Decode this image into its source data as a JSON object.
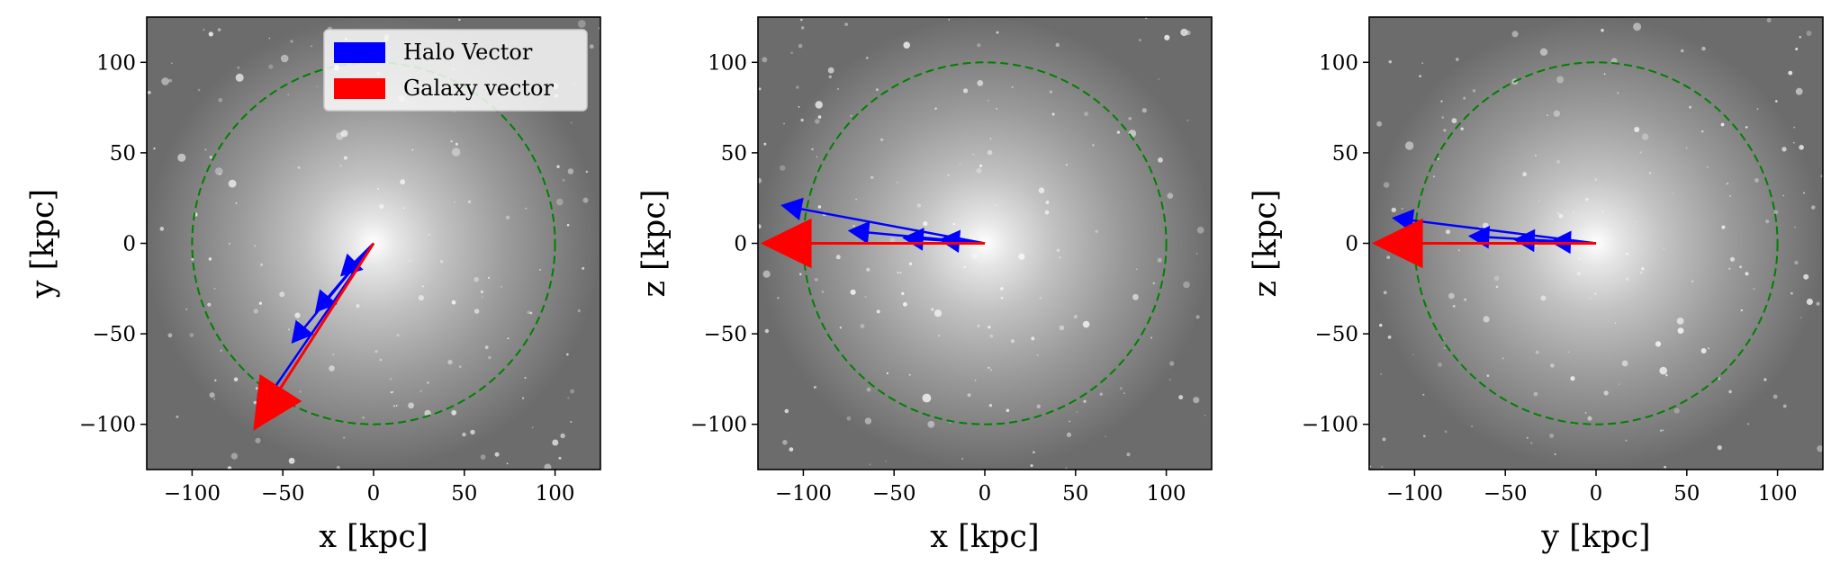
{
  "chart_data": [
    {
      "type": "quiver",
      "xlabel": "x [kpc]",
      "ylabel": "y [kpc]",
      "xlim": [
        -125,
        125
      ],
      "ylim": [
        -125,
        125
      ],
      "xticks": [
        -100,
        -50,
        0,
        50,
        100
      ],
      "yticks": [
        -100,
        -50,
        0,
        50,
        100
      ],
      "xtick_labels": [
        "−100",
        "−50",
        "0",
        "50",
        "100"
      ],
      "ytick_labels": [
        "−100",
        "−50",
        "0",
        "50",
        "100"
      ],
      "circle_radius": 100,
      "legend": {
        "placement": "top-right",
        "entries": [
          {
            "label": "Halo Vector",
            "color": "#0000ff"
          },
          {
            "label": "Galaxy vector",
            "color": "#ff0000"
          }
        ]
      },
      "series": [
        {
          "key": "halo",
          "color": "#0000ff",
          "vectors": [
            {
              "x0": 0,
              "y0": 0,
              "x1": -18,
              "y1": -18
            },
            {
              "x0": 0,
              "y0": 0,
              "x1": -32,
              "y1": -38
            },
            {
              "x0": 0,
              "y0": 0,
              "x1": -45,
              "y1": -55
            },
            {
              "x0": 0,
              "y0": 0,
              "x1": -65,
              "y1": -95
            }
          ]
        },
        {
          "key": "galaxy",
          "color": "#ff0000",
          "vectors": [
            {
              "x0": 0,
              "y0": 0,
              "x1": -66,
              "y1": -103
            }
          ]
        }
      ]
    },
    {
      "type": "quiver",
      "xlabel": "x [kpc]",
      "ylabel": "z [kpc]",
      "xlim": [
        -125,
        125
      ],
      "ylim": [
        -125,
        125
      ],
      "xticks": [
        -100,
        -50,
        0,
        50,
        100
      ],
      "yticks": [
        -100,
        -50,
        0,
        50,
        100
      ],
      "xtick_labels": [
        "−100",
        "−50",
        "0",
        "50",
        "100"
      ],
      "ytick_labels": [
        "−100",
        "−50",
        "0",
        "50",
        "100"
      ],
      "circle_radius": 100,
      "series": [
        {
          "key": "halo",
          "color": "#0000ff",
          "vectors": [
            {
              "x0": 0,
              "y0": 0,
              "x1": -25,
              "y1": 2
            },
            {
              "x0": 0,
              "y0": 0,
              "x1": -45,
              "y1": 3
            },
            {
              "x0": 0,
              "y0": 0,
              "x1": -75,
              "y1": 7
            },
            {
              "x0": 0,
              "y0": 0,
              "x1": -112,
              "y1": 21
            }
          ]
        },
        {
          "key": "galaxy",
          "color": "#ff0000",
          "vectors": [
            {
              "x0": 0,
              "y0": 0,
              "x1": -123,
              "y1": 0
            }
          ]
        }
      ]
    },
    {
      "type": "quiver",
      "xlabel": "y [kpc]",
      "ylabel": "z [kpc]",
      "xlim": [
        -125,
        125
      ],
      "ylim": [
        -125,
        125
      ],
      "xticks": [
        -100,
        -50,
        0,
        50,
        100
      ],
      "yticks": [
        -100,
        -50,
        0,
        50,
        100
      ],
      "xtick_labels": [
        "−100",
        "−50",
        "0",
        "50",
        "100"
      ],
      "ytick_labels": [
        "−100",
        "−50",
        "0",
        "50",
        "100"
      ],
      "circle_radius": 100,
      "series": [
        {
          "key": "halo",
          "color": "#0000ff",
          "vectors": [
            {
              "x0": 0,
              "y0": 0,
              "x1": -25,
              "y1": 1
            },
            {
              "x0": 0,
              "y0": 0,
              "x1": -45,
              "y1": 2
            },
            {
              "x0": 0,
              "y0": 0,
              "x1": -70,
              "y1": 4
            },
            {
              "x0": 0,
              "y0": 0,
              "x1": -112,
              "y1": 14
            }
          ]
        },
        {
          "key": "galaxy",
          "color": "#ff0000",
          "vectors": [
            {
              "x0": 0,
              "y0": 0,
              "x1": -123,
              "y1": 0
            }
          ]
        }
      ]
    }
  ]
}
